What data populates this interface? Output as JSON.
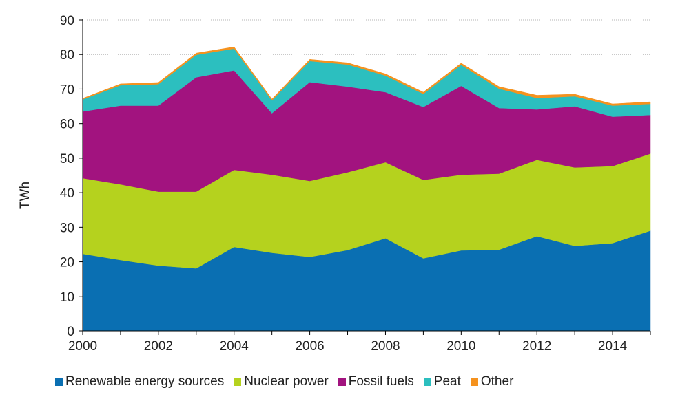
{
  "chart_data": {
    "type": "area",
    "stacked": true,
    "ylabel": "TWh",
    "xlabel": "",
    "ylim": [
      0,
      90
    ],
    "yticks": [
      0,
      10,
      20,
      30,
      40,
      50,
      60,
      70,
      80,
      90
    ],
    "xlim": [
      2000,
      2015
    ],
    "xticks": [
      2000,
      2002,
      2004,
      2006,
      2008,
      2010,
      2012,
      2014
    ],
    "grid": "horizontal dotted",
    "legend_position": "bottom",
    "x": [
      2000,
      2001,
      2002,
      2003,
      2004,
      2005,
      2006,
      2007,
      2008,
      2009,
      2010,
      2011,
      2012,
      2013,
      2014,
      2015
    ],
    "series": [
      {
        "name": "Renewable energy sources",
        "color": "#0a6fb2",
        "values": [
          22.3,
          20.5,
          18.9,
          18.1,
          24.3,
          22.6,
          21.4,
          23.4,
          26.8,
          21.0,
          23.3,
          23.5,
          27.4,
          24.6,
          25.4,
          29.0
        ]
      },
      {
        "name": "Nuclear power",
        "color": "#b5d21e",
        "values": [
          21.9,
          21.9,
          21.4,
          22.2,
          22.3,
          22.6,
          22.0,
          22.5,
          22.0,
          22.7,
          21.9,
          22.0,
          22.1,
          22.7,
          22.3,
          22.3
        ]
      },
      {
        "name": "Fossil fuels",
        "color": "#a2137f",
        "values": [
          19.3,
          22.8,
          24.9,
          33.1,
          28.8,
          17.8,
          28.6,
          24.8,
          20.3,
          21.1,
          25.7,
          19.0,
          14.6,
          17.7,
          14.3,
          11.2
        ]
      },
      {
        "name": "Peat",
        "color": "#2cbfbf",
        "values": [
          3.5,
          5.9,
          6.2,
          6.5,
          6.3,
          3.7,
          6.1,
          6.4,
          4.8,
          3.8,
          6.1,
          5.6,
          3.3,
          2.9,
          3.2,
          3.2
        ]
      },
      {
        "name": "Other",
        "color": "#f5921e",
        "values": [
          0.3,
          0.4,
          0.5,
          0.5,
          0.5,
          0.4,
          0.5,
          0.5,
          0.5,
          0.5,
          0.5,
          0.6,
          0.8,
          0.6,
          0.5,
          0.6
        ]
      }
    ]
  }
}
